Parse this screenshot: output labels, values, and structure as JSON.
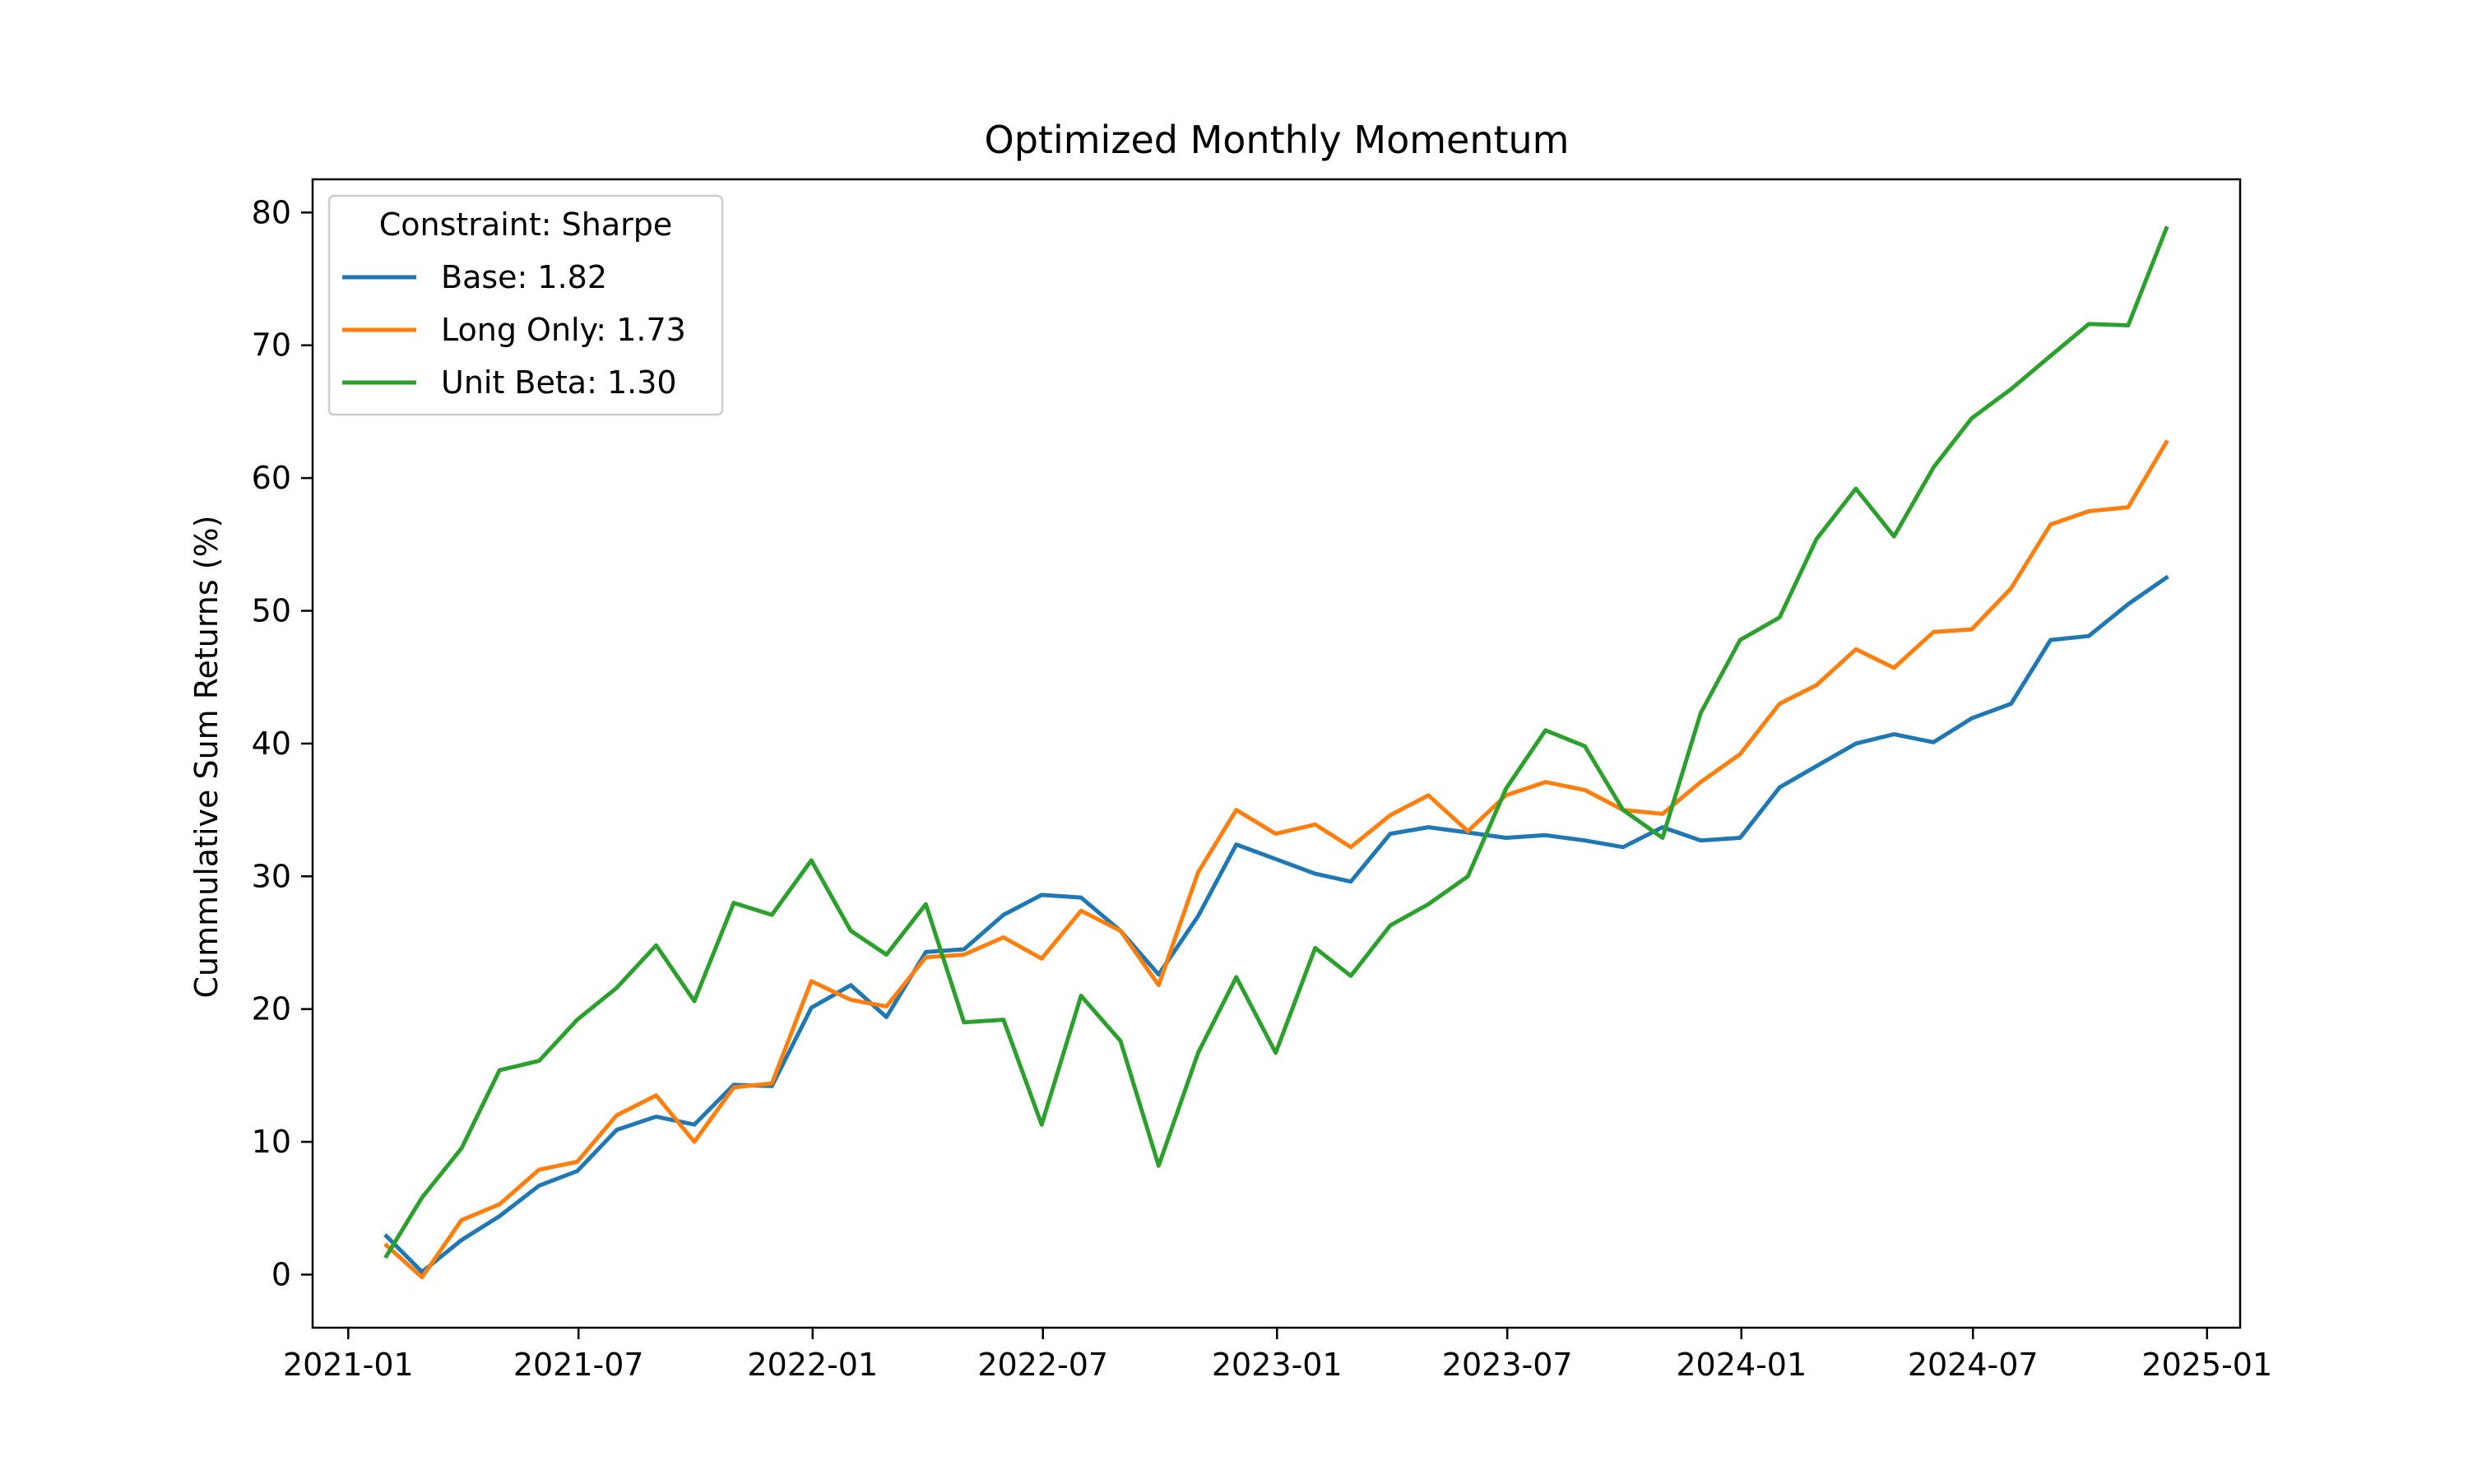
{
  "chart_data": {
    "type": "line",
    "title": "Optimized Monthly Momentum",
    "xlabel": "",
    "ylabel": "Cummulative Sum Returns (%)",
    "xlim": [
      "2020-12-04",
      "2025-01-27"
    ],
    "ylim": [
      -4,
      82.5
    ],
    "x_ticks": [
      "2021-01",
      "2021-07",
      "2022-01",
      "2022-07",
      "2023-01",
      "2023-07",
      "2024-01",
      "2024-07",
      "2025-01"
    ],
    "y_ticks": [
      0,
      10,
      20,
      30,
      40,
      50,
      60,
      70,
      80
    ],
    "grid": false,
    "legend": {
      "title": "Constraint: Sharpe",
      "placement": "upper-left"
    },
    "x": [
      "2021-01-31",
      "2021-02-28",
      "2021-03-31",
      "2021-04-30",
      "2021-05-31",
      "2021-06-30",
      "2021-07-31",
      "2021-08-31",
      "2021-09-30",
      "2021-10-31",
      "2021-11-30",
      "2021-12-31",
      "2022-01-31",
      "2022-02-28",
      "2022-03-31",
      "2022-04-30",
      "2022-05-31",
      "2022-06-30",
      "2022-07-31",
      "2022-08-31",
      "2022-09-30",
      "2022-10-31",
      "2022-11-30",
      "2022-12-31",
      "2023-01-31",
      "2023-02-28",
      "2023-03-31",
      "2023-04-30",
      "2023-05-31",
      "2023-06-30",
      "2023-07-31",
      "2023-08-31",
      "2023-09-30",
      "2023-10-31",
      "2023-11-30",
      "2023-12-31",
      "2024-01-31",
      "2024-02-29",
      "2024-03-31",
      "2024-04-30",
      "2024-05-31",
      "2024-06-30",
      "2024-07-31",
      "2024-08-31",
      "2024-09-30",
      "2024-10-31",
      "2024-11-30"
    ],
    "series": [
      {
        "name": "Base: 1.82",
        "color": "#1f77b4",
        "values": [
          2.9,
          0.2,
          2.6,
          4.4,
          6.7,
          7.8,
          10.9,
          11.9,
          11.3,
          14.3,
          14.2,
          20.1,
          21.8,
          19.4,
          24.3,
          24.5,
          27.1,
          28.6,
          28.4,
          25.9,
          22.6,
          27.0,
          32.4,
          31.3,
          30.2,
          29.6,
          33.2,
          33.7,
          33.3,
          32.9,
          33.1,
          32.7,
          32.2,
          33.7,
          32.7,
          32.9,
          36.7,
          38.3,
          40.0,
          40.7,
          40.1,
          41.9,
          43.0,
          47.8,
          48.1,
          50.5,
          52.5
        ]
      },
      {
        "name": "Long Only: 1.73",
        "color": "#ff7f0e",
        "values": [
          2.2,
          -0.2,
          4.1,
          5.3,
          7.9,
          8.5,
          12.0,
          13.5,
          10.0,
          14.1,
          14.4,
          22.1,
          20.7,
          20.2,
          23.9,
          24.1,
          25.4,
          23.8,
          27.4,
          25.9,
          21.8,
          30.3,
          35.0,
          33.2,
          33.9,
          32.2,
          34.6,
          36.1,
          33.4,
          36.1,
          37.1,
          36.5,
          35.0,
          34.7,
          37.1,
          39.2,
          43.0,
          44.4,
          47.1,
          45.7,
          48.4,
          48.6,
          51.7,
          56.5,
          57.5,
          57.8,
          62.7
        ]
      },
      {
        "name": "Unit Beta: 1.30",
        "color": "#2ca02c",
        "values": [
          1.4,
          5.8,
          9.5,
          15.4,
          16.1,
          19.2,
          21.6,
          24.8,
          20.6,
          28.0,
          27.1,
          31.2,
          25.9,
          24.1,
          27.9,
          19.0,
          19.2,
          11.3,
          21.0,
          17.6,
          8.2,
          16.7,
          22.4,
          16.7,
          24.6,
          22.5,
          26.3,
          27.9,
          30.0,
          36.6,
          41.0,
          39.8,
          35.0,
          32.9,
          42.3,
          47.8,
          49.5,
          55.4,
          59.2,
          55.6,
          60.8,
          64.5,
          66.7,
          69.2,
          71.6,
          71.5,
          78.8
        ]
      }
    ]
  }
}
